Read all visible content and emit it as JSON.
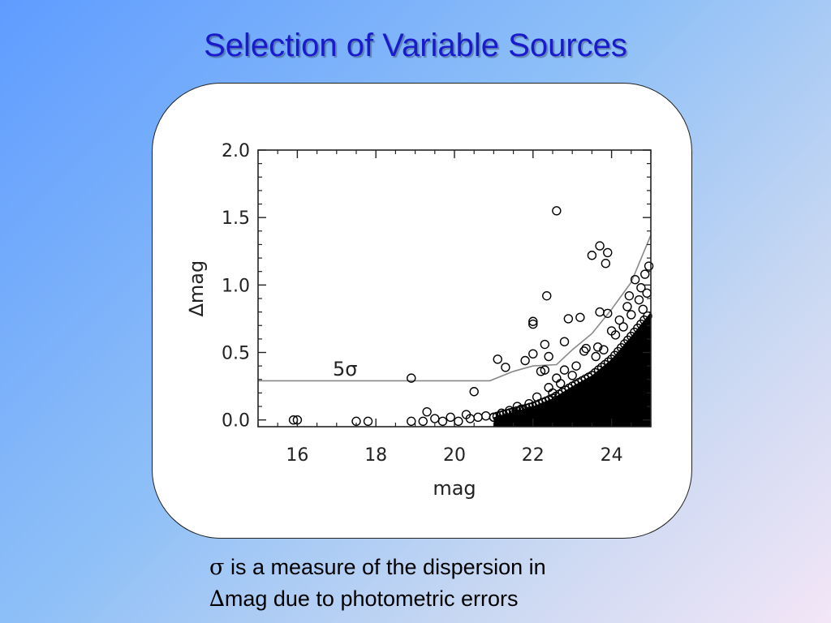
{
  "slide": {
    "title": "Selection of Variable Sources",
    "caption": {
      "line1_symbol": "σ",
      "line1_text": " is a measure of the dispersion in",
      "line2_symbol": "∆",
      "line2_text": "mag due to photometric errors"
    }
  },
  "colors": {
    "title": "#1a1acc",
    "frame_background": "#ffffff",
    "marker": "#000000",
    "threshold_line": "#888888"
  },
  "chart_data": {
    "type": "scatter",
    "title": "",
    "xlabel": "mag",
    "ylabel": "∆mag",
    "xlim": [
      15,
      25
    ],
    "ylim": [
      -0.05,
      2.0
    ],
    "xticks": [
      16,
      18,
      20,
      22,
      24
    ],
    "yticks": [
      0.0,
      0.5,
      1.0,
      1.5,
      2.0
    ],
    "xtick_labels": [
      "16",
      "18",
      "20",
      "22",
      "24"
    ],
    "ytick_labels": [
      "0.0",
      "0.5",
      "1.0",
      "1.5",
      "2.0"
    ],
    "marker": "open-circle",
    "grid": false,
    "annotations": [
      {
        "text": "5σ",
        "x": 16.9,
        "y": 0.33
      }
    ],
    "threshold_curve": {
      "name": "5σ",
      "x": [
        15.0,
        17.0,
        19.0,
        20.9,
        21.5,
        22.0,
        22.6,
        23.0,
        23.5,
        24.0,
        24.5,
        25.0
      ],
      "y": [
        0.29,
        0.29,
        0.29,
        0.29,
        0.36,
        0.4,
        0.41,
        0.52,
        0.64,
        0.82,
        1.02,
        1.37
      ]
    },
    "points": [
      {
        "x": 15.9,
        "y": 0.0
      },
      {
        "x": 16.0,
        "y": 0.0
      },
      {
        "x": 17.5,
        "y": -0.01
      },
      {
        "x": 17.8,
        "y": -0.01
      },
      {
        "x": 18.9,
        "y": 0.31
      },
      {
        "x": 18.9,
        "y": -0.01
      },
      {
        "x": 19.2,
        "y": -0.01
      },
      {
        "x": 19.3,
        "y": 0.06
      },
      {
        "x": 19.5,
        "y": 0.01
      },
      {
        "x": 19.7,
        "y": -0.01
      },
      {
        "x": 19.9,
        "y": 0.02
      },
      {
        "x": 20.1,
        "y": -0.01
      },
      {
        "x": 20.3,
        "y": 0.04
      },
      {
        "x": 20.4,
        "y": 0.01
      },
      {
        "x": 20.5,
        "y": 0.21
      },
      {
        "x": 20.6,
        "y": 0.02
      },
      {
        "x": 20.8,
        "y": 0.03
      },
      {
        "x": 21.0,
        "y": 0.02
      },
      {
        "x": 21.1,
        "y": 0.45
      },
      {
        "x": 21.2,
        "y": 0.05
      },
      {
        "x": 21.3,
        "y": 0.39
      },
      {
        "x": 21.4,
        "y": 0.07
      },
      {
        "x": 21.5,
        "y": 0.04
      },
      {
        "x": 21.6,
        "y": 0.1
      },
      {
        "x": 21.7,
        "y": 0.08
      },
      {
        "x": 21.8,
        "y": 0.44
      },
      {
        "x": 21.9,
        "y": 0.12
      },
      {
        "x": 22.0,
        "y": 0.73
      },
      {
        "x": 22.0,
        "y": 0.71
      },
      {
        "x": 22.0,
        "y": 0.49
      },
      {
        "x": 22.1,
        "y": 0.17
      },
      {
        "x": 22.2,
        "y": 0.36
      },
      {
        "x": 22.3,
        "y": 0.56
      },
      {
        "x": 22.3,
        "y": 0.37
      },
      {
        "x": 22.35,
        "y": 0.92
      },
      {
        "x": 22.4,
        "y": 0.47
      },
      {
        "x": 22.4,
        "y": 0.24
      },
      {
        "x": 22.5,
        "y": 0.2
      },
      {
        "x": 22.6,
        "y": 1.55
      },
      {
        "x": 22.6,
        "y": 0.31
      },
      {
        "x": 22.7,
        "y": 0.27
      },
      {
        "x": 22.8,
        "y": 0.58
      },
      {
        "x": 22.8,
        "y": 0.37
      },
      {
        "x": 22.9,
        "y": 0.75
      },
      {
        "x": 23.0,
        "y": 0.33
      },
      {
        "x": 23.1,
        "y": 0.4
      },
      {
        "x": 23.2,
        "y": 0.76
      },
      {
        "x": 23.3,
        "y": 0.51
      },
      {
        "x": 23.35,
        "y": 0.53
      },
      {
        "x": 23.5,
        "y": 1.22
      },
      {
        "x": 23.6,
        "y": 0.47
      },
      {
        "x": 23.65,
        "y": 0.54
      },
      {
        "x": 23.7,
        "y": 0.8
      },
      {
        "x": 23.7,
        "y": 1.29
      },
      {
        "x": 23.8,
        "y": 0.52
      },
      {
        "x": 23.85,
        "y": 1.16
      },
      {
        "x": 23.9,
        "y": 1.24
      },
      {
        "x": 23.9,
        "y": 0.79
      },
      {
        "x": 24.0,
        "y": 0.66
      },
      {
        "x": 24.1,
        "y": 0.63
      },
      {
        "x": 24.2,
        "y": 0.74
      },
      {
        "x": 24.3,
        "y": 0.69
      },
      {
        "x": 24.4,
        "y": 0.84
      },
      {
        "x": 24.45,
        "y": 0.92
      },
      {
        "x": 24.5,
        "y": 0.78
      },
      {
        "x": 24.6,
        "y": 1.04
      },
      {
        "x": 24.7,
        "y": 0.89
      },
      {
        "x": 24.75,
        "y": 0.98
      },
      {
        "x": 24.8,
        "y": 0.82
      },
      {
        "x": 24.85,
        "y": 1.08
      },
      {
        "x": 24.9,
        "y": 0.94
      },
      {
        "x": 24.95,
        "y": 1.14
      }
    ],
    "dense_region": {
      "description": "saturated cloud of overlapping points",
      "upper_edge_x": [
        21.0,
        21.5,
        22.0,
        22.5,
        23.0,
        23.5,
        24.0,
        24.5,
        25.0
      ],
      "upper_edge_y": [
        0.02,
        0.06,
        0.1,
        0.16,
        0.25,
        0.33,
        0.45,
        0.62,
        0.8
      ]
    }
  }
}
